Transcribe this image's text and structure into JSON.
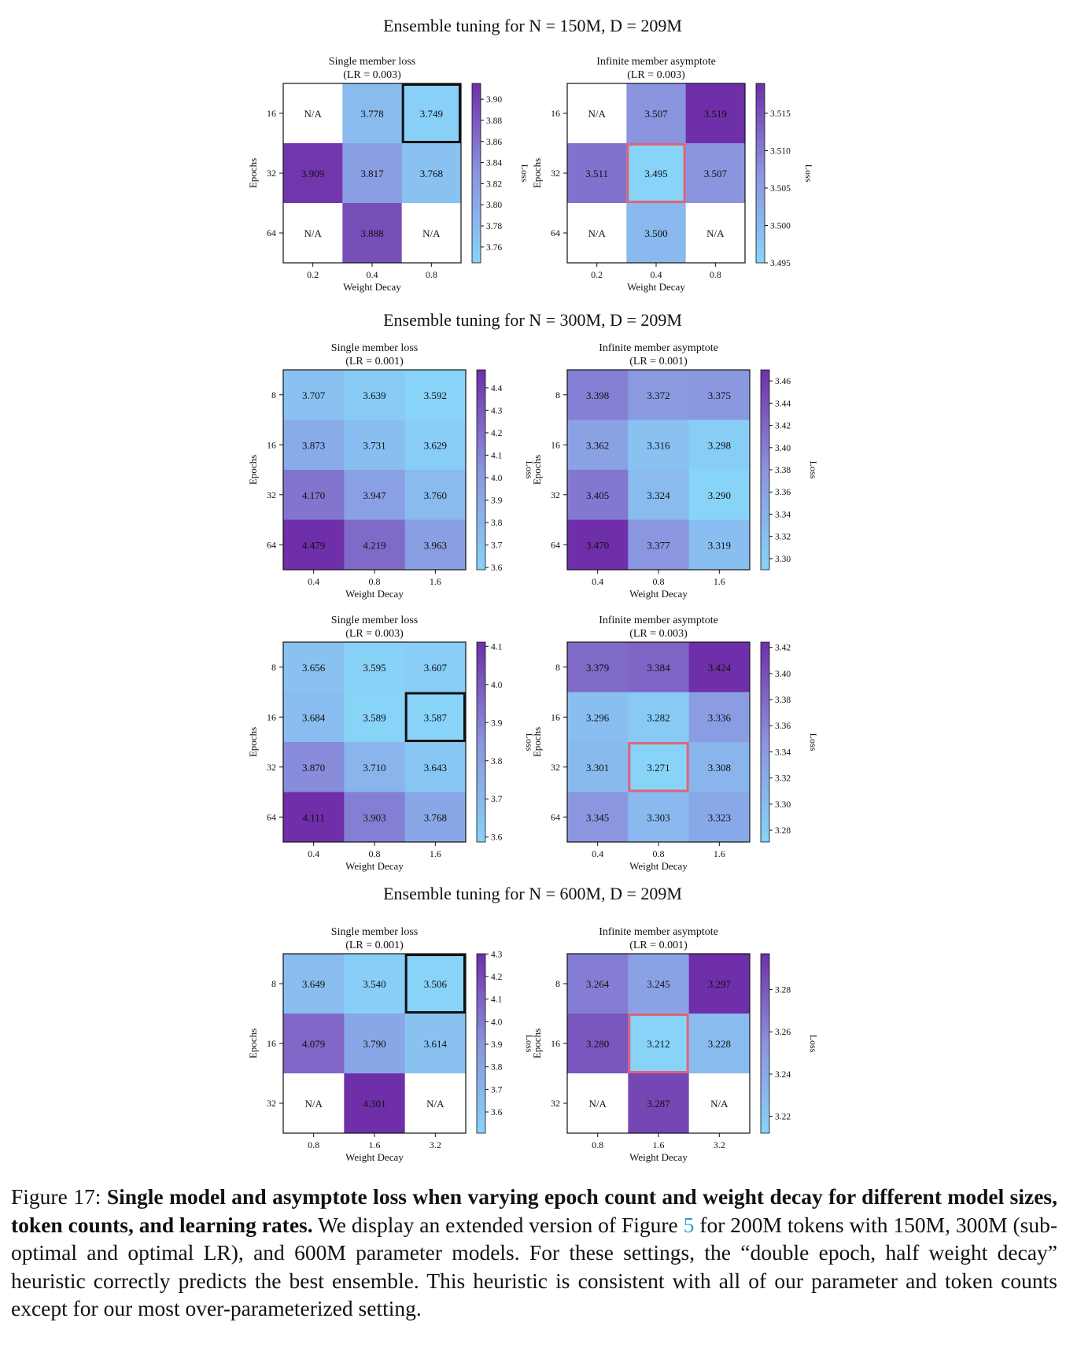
{
  "figure": {
    "sections": [
      {
        "title": "Ensemble tuning for N = 150M, D = 209M"
      },
      {
        "title": "Ensemble tuning for N = 300M, D = 209M"
      },
      {
        "title": "Ensemble tuning for N = 600M, D = 209M"
      }
    ]
  },
  "chart_data": [
    {
      "type": "heatmap",
      "section": 0,
      "title": "Single member loss",
      "subtitle": "(LR = 0.003)",
      "xlabel": "Weight Decay",
      "ylabel": "Epochs",
      "colorbar_label": "Loss",
      "x": [
        "0.2",
        "0.4",
        "0.8"
      ],
      "y": [
        "16",
        "32",
        "64"
      ],
      "values": [
        [
          null,
          3.778,
          3.749
        ],
        [
          3.909,
          3.817,
          3.768
        ],
        [
          null,
          3.888,
          null
        ]
      ],
      "colorbar_range": [
        3.745,
        3.915
      ],
      "colorbar_ticks": [
        "3.76",
        "3.78",
        "3.80",
        "3.82",
        "3.84",
        "3.86",
        "3.88",
        "3.90"
      ],
      "na_label": "N/A",
      "highlight": {
        "row": 0,
        "col": 2,
        "color": "#111111"
      }
    },
    {
      "type": "heatmap",
      "section": 0,
      "title": "Infinite member asymptote",
      "subtitle": "(LR = 0.003)",
      "xlabel": "Weight Decay",
      "ylabel": "Epochs",
      "colorbar_label": "Loss",
      "x": [
        "0.2",
        "0.4",
        "0.8"
      ],
      "y": [
        "16",
        "32",
        "64"
      ],
      "values": [
        [
          null,
          3.507,
          3.519
        ],
        [
          3.511,
          3.495,
          3.507
        ],
        [
          null,
          3.5,
          null
        ]
      ],
      "colorbar_range": [
        3.495,
        3.519
      ],
      "colorbar_ticks": [
        "3.495",
        "3.500",
        "3.505",
        "3.510",
        "3.515"
      ],
      "na_label": "N/A",
      "highlight": {
        "row": 1,
        "col": 1,
        "color": "#e0637a"
      }
    },
    {
      "type": "heatmap",
      "section": 1,
      "title": "Single member loss",
      "subtitle": "(LR = 0.001)",
      "xlabel": "Weight Decay",
      "ylabel": "Epochs",
      "colorbar_label": "Loss",
      "x": [
        "0.4",
        "0.8",
        "1.6"
      ],
      "y": [
        "8",
        "16",
        "32",
        "64"
      ],
      "values": [
        [
          3.707,
          3.639,
          3.592
        ],
        [
          3.873,
          3.731,
          3.629
        ],
        [
          4.17,
          3.947,
          3.76
        ],
        [
          4.479,
          4.219,
          3.963
        ]
      ],
      "colorbar_range": [
        3.59,
        4.48
      ],
      "colorbar_ticks": [
        "3.6",
        "3.7",
        "3.8",
        "3.9",
        "4.0",
        "4.1",
        "4.2",
        "4.3",
        "4.4"
      ],
      "na_label": "N/A"
    },
    {
      "type": "heatmap",
      "section": 1,
      "title": "Infinite member asymptote",
      "subtitle": "(LR = 0.001)",
      "xlabel": "Weight Decay",
      "ylabel": "Epochs",
      "colorbar_label": "Loss",
      "x": [
        "0.4",
        "0.8",
        "1.6"
      ],
      "y": [
        "8",
        "16",
        "32",
        "64"
      ],
      "values": [
        [
          3.398,
          3.372,
          3.375
        ],
        [
          3.362,
          3.316,
          3.298
        ],
        [
          3.405,
          3.324,
          3.29
        ],
        [
          3.47,
          3.377,
          3.319
        ]
      ],
      "colorbar_range": [
        3.29,
        3.47
      ],
      "colorbar_ticks": [
        "3.30",
        "3.32",
        "3.34",
        "3.36",
        "3.38",
        "3.40",
        "3.42",
        "3.44",
        "3.46"
      ],
      "na_label": "N/A"
    },
    {
      "type": "heatmap",
      "section": 1,
      "title": "Single member loss",
      "subtitle": "(LR = 0.003)",
      "xlabel": "Weight Decay",
      "ylabel": "Epochs",
      "colorbar_label": "Loss",
      "x": [
        "0.4",
        "0.8",
        "1.6"
      ],
      "y": [
        "8",
        "16",
        "32",
        "64"
      ],
      "values": [
        [
          3.656,
          3.595,
          3.607
        ],
        [
          3.684,
          3.589,
          3.587
        ],
        [
          3.87,
          3.71,
          3.643
        ],
        [
          4.111,
          3.903,
          3.768
        ]
      ],
      "colorbar_range": [
        3.587,
        4.111
      ],
      "colorbar_ticks": [
        "3.6",
        "3.7",
        "3.8",
        "3.9",
        "4.0",
        "4.1"
      ],
      "na_label": "N/A",
      "highlight": {
        "row": 1,
        "col": 2,
        "color": "#111111"
      }
    },
    {
      "type": "heatmap",
      "section": 1,
      "title": "Infinite member asymptote",
      "subtitle": "(LR = 0.003)",
      "xlabel": "Weight Decay",
      "ylabel": "Epochs",
      "colorbar_label": "Loss",
      "x": [
        "0.4",
        "0.8",
        "1.6"
      ],
      "y": [
        "8",
        "16",
        "32",
        "64"
      ],
      "values": [
        [
          3.379,
          3.384,
          3.424
        ],
        [
          3.296,
          3.282,
          3.336
        ],
        [
          3.301,
          3.271,
          3.308
        ],
        [
          3.345,
          3.303,
          3.323
        ]
      ],
      "colorbar_range": [
        3.271,
        3.424
      ],
      "colorbar_ticks": [
        "3.28",
        "3.30",
        "3.32",
        "3.34",
        "3.36",
        "3.38",
        "3.40",
        "3.42"
      ],
      "na_label": "N/A",
      "highlight": {
        "row": 2,
        "col": 1,
        "color": "#e0637a"
      }
    },
    {
      "type": "heatmap",
      "section": 2,
      "title": "Single member loss",
      "subtitle": "(LR = 0.001)",
      "xlabel": "Weight Decay",
      "ylabel": "Epochs",
      "colorbar_label": "Loss",
      "x": [
        "0.8",
        "1.6",
        "3.2"
      ],
      "y": [
        "8",
        "16",
        "32"
      ],
      "values": [
        [
          3.649,
          3.54,
          3.506
        ],
        [
          4.079,
          3.79,
          3.614
        ],
        [
          null,
          4.301,
          null
        ]
      ],
      "colorbar_range": [
        3.506,
        4.301
      ],
      "colorbar_ticks": [
        "3.6",
        "3.7",
        "3.8",
        "3.9",
        "4.0",
        "4.1",
        "4.2",
        "4.3"
      ],
      "na_label": "N/A",
      "highlight": {
        "row": 0,
        "col": 2,
        "color": "#111111"
      }
    },
    {
      "type": "heatmap",
      "section": 2,
      "title": "Infinite member asymptote",
      "subtitle": "(LR = 0.001)",
      "xlabel": "Weight Decay",
      "ylabel": "Epochs",
      "colorbar_label": "Loss",
      "x": [
        "0.8",
        "1.6",
        "3.2"
      ],
      "y": [
        "8",
        "16",
        "32"
      ],
      "values": [
        [
          3.264,
          3.245,
          3.297
        ],
        [
          3.28,
          3.212,
          3.228
        ],
        [
          null,
          3.287,
          null
        ]
      ],
      "colorbar_range": [
        3.212,
        3.297
      ],
      "colorbar_ticks": [
        "3.22",
        "3.24",
        "3.26",
        "3.28"
      ],
      "na_label": "N/A",
      "highlight": {
        "row": 1,
        "col": 1,
        "color": "#e0637a"
      }
    }
  ],
  "caption": {
    "label": "Figure 17:",
    "bold": "Single model and asymptote loss when varying epoch count and weight decay for different model sizes, token counts, and learning rates.",
    "text_before_ref": "We display an extended version of Figure",
    "ref": "5",
    "text_after_ref": "for 200M tokens with 150M, 300M (sub-optimal and optimal LR), and 600M parameter models. For these settings, the “double epoch, half weight decay” heuristic correctly predicts the best ensemble. This heuristic is consistent with all of our parameter and token counts except for our most over-parameterized setting."
  },
  "colors": {
    "low": "#88d3f8",
    "mid": "#8a94df",
    "high": "#6f2fa8",
    "na_cell": "#ffffff",
    "black_box": "#111111",
    "pink_box": "#e0637a"
  }
}
